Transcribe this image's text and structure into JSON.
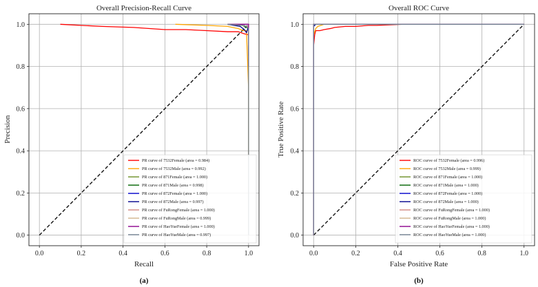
{
  "chart_data": [
    {
      "type": "line",
      "title": "Overall Precision-Recall Curve",
      "xlabel": "Recall",
      "ylabel": "Precision",
      "caption": "(a)",
      "xlim": [
        -0.05,
        1.05
      ],
      "ylim": [
        -0.05,
        1.05
      ],
      "xticks": [
        "0.0",
        "0.2",
        "0.4",
        "0.6",
        "0.8",
        "1.0"
      ],
      "yticks": [
        "0.0",
        "0.2",
        "0.4",
        "0.6",
        "0.8",
        "1.0"
      ],
      "grid": true,
      "legend_position": "bottom-right",
      "diagonal": {
        "from": [
          0,
          0
        ],
        "to": [
          1,
          1
        ],
        "style": "dashed"
      },
      "series": [
        {
          "name": "PR curve of 7532Female (area = 0.984)",
          "color": "#ff0000",
          "x": [
            0.1,
            0.2,
            0.3,
            0.45,
            0.6,
            0.7,
            0.8,
            0.9,
            0.95,
            0.98,
            1.0,
            1.0
          ],
          "y": [
            1.0,
            0.995,
            0.99,
            0.985,
            0.975,
            0.975,
            0.97,
            0.965,
            0.965,
            0.955,
            0.95,
            0.9
          ]
        },
        {
          "name": "PR curve of 7532Male (area = 0.992)",
          "color": "#ffa500",
          "x": [
            0.65,
            0.8,
            0.9,
            0.95,
            0.975,
            0.99,
            1.0,
            1.0
          ],
          "y": [
            1.0,
            0.995,
            0.99,
            0.98,
            0.97,
            0.97,
            0.7,
            0.38
          ]
        },
        {
          "name": "PR curve of 871Female (area = 1.000)",
          "color": "#6b8e23",
          "x": [
            0.9,
            0.98,
            1.0,
            1.0
          ],
          "y": [
            1.0,
            1.0,
            1.0,
            0.9
          ]
        },
        {
          "name": "PR curve of 871Male (area = 0.998)",
          "color": "#006400",
          "x": [
            0.9,
            0.97,
            0.99,
            1.0,
            1.0
          ],
          "y": [
            1.0,
            0.995,
            0.985,
            0.98,
            0.85
          ]
        },
        {
          "name": "PR curve of 872Female (area = 1.000)",
          "color": "#0000cd",
          "x": [
            0.9,
            0.99,
            1.0,
            1.0
          ],
          "y": [
            1.0,
            1.0,
            1.0,
            0.93
          ]
        },
        {
          "name": "PR curve of 872Male (area = 0.997)",
          "color": "#00008b",
          "x": [
            0.9,
            0.96,
            0.98,
            0.99,
            1.0,
            1.0
          ],
          "y": [
            1.0,
            0.99,
            0.975,
            0.96,
            0.99,
            0.85
          ]
        },
        {
          "name": "PR curve of FuRongFemale (area = 1.000)",
          "color": "#d2877f",
          "x": [
            0.9,
            0.99,
            1.0,
            1.0
          ],
          "y": [
            1.0,
            1.0,
            1.0,
            0.95
          ]
        },
        {
          "name": "PR curve of FuRongMale (area = 0.999)",
          "color": "#d2b48c",
          "x": [
            0.9,
            0.97,
            0.99,
            1.0,
            1.0
          ],
          "y": [
            1.0,
            0.995,
            0.99,
            0.99,
            0.9
          ]
        },
        {
          "name": "PR curve of HaoYueFemale (area = 1.000)",
          "color": "#8b008b",
          "x": [
            0.9,
            0.99,
            1.0,
            1.0
          ],
          "y": [
            1.0,
            1.0,
            1.0,
            0.8
          ]
        },
        {
          "name": "PR curve of HaoYueMale (area = 0.997)",
          "color": "#708090",
          "x": [
            0.9,
            0.98,
            0.995,
            1.0,
            1.0
          ],
          "y": [
            1.0,
            0.995,
            0.985,
            0.98,
            0.0
          ]
        }
      ]
    },
    {
      "type": "line",
      "title": "Overall ROC Curve",
      "xlabel": "False Positive Rate",
      "ylabel": "True Positive Rate",
      "caption": "(b)",
      "xlim": [
        -0.05,
        1.05
      ],
      "ylim": [
        -0.05,
        1.05
      ],
      "xticks": [
        "0.0",
        "0.2",
        "0.4",
        "0.6",
        "0.8",
        "1.0"
      ],
      "yticks": [
        "0.0",
        "0.2",
        "0.4",
        "0.6",
        "0.8",
        "1.0"
      ],
      "grid": true,
      "legend_position": "bottom-right",
      "diagonal": {
        "from": [
          0,
          0
        ],
        "to": [
          1,
          1
        ],
        "style": "dashed"
      },
      "series": [
        {
          "name": "ROC curve of 7532Female (area = 0.996)",
          "color": "#ff0000",
          "x": [
            0.0,
            0.0,
            0.005,
            0.01,
            0.03,
            0.05,
            0.08,
            0.1,
            0.15,
            0.2,
            0.26,
            0.3,
            0.42
          ],
          "y": [
            0.0,
            0.9,
            0.95,
            0.97,
            0.97,
            0.975,
            0.98,
            0.985,
            0.99,
            0.99,
            0.995,
            0.995,
            1.0
          ]
        },
        {
          "name": "ROC curve of 7532Male (area = 0.999)",
          "color": "#ffa500",
          "x": [
            0.0,
            0.0,
            0.01,
            0.02,
            0.05,
            1.0
          ],
          "y": [
            0.0,
            0.95,
            0.98,
            0.99,
            1.0,
            1.0
          ]
        },
        {
          "name": "ROC curve of 871Female (area = 1.000)",
          "color": "#6b8e23",
          "x": [
            0.0,
            0.0,
            1.0
          ],
          "y": [
            0.0,
            1.0,
            1.0
          ]
        },
        {
          "name": "ROC curve of 871Male (area = 1.000)",
          "color": "#006400",
          "x": [
            0.0,
            0.0,
            1.0
          ],
          "y": [
            0.0,
            1.0,
            1.0
          ]
        },
        {
          "name": "ROC curve of 872Female (area = 1.000)",
          "color": "#0000cd",
          "x": [
            0.0,
            0.0,
            1.0
          ],
          "y": [
            0.0,
            1.0,
            1.0
          ]
        },
        {
          "name": "ROC curve of 872Male (area = 1.000)",
          "color": "#00008b",
          "x": [
            0.0,
            0.0,
            0.01,
            1.0
          ],
          "y": [
            0.0,
            0.99,
            1.0,
            1.0
          ]
        },
        {
          "name": "ROC curve of FuRongFemale (area = 1.000)",
          "color": "#d2877f",
          "x": [
            0.0,
            0.0,
            1.0
          ],
          "y": [
            0.0,
            1.0,
            1.0
          ]
        },
        {
          "name": "ROC curve of FuRongMale (area = 1.000)",
          "color": "#d2b48c",
          "x": [
            0.0,
            0.0,
            1.0
          ],
          "y": [
            0.0,
            1.0,
            1.0
          ]
        },
        {
          "name": "ROC curve of HaoYueFemale (area = 1.000)",
          "color": "#8b008b",
          "x": [
            0.0,
            0.0,
            1.0
          ],
          "y": [
            0.0,
            1.0,
            1.0
          ]
        },
        {
          "name": "ROC curve of HaoYueMale (area = 1.000)",
          "color": "#708090",
          "x": [
            0.0,
            0.0,
            1.0
          ],
          "y": [
            0.0,
            1.0,
            1.0
          ]
        }
      ]
    }
  ]
}
